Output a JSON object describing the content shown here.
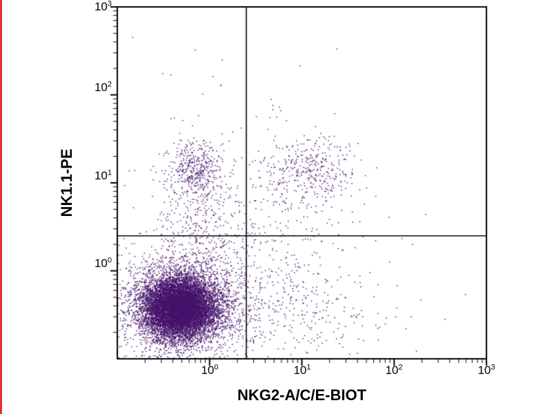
{
  "artifact": {
    "color": "#e03131"
  },
  "chart_data": {
    "type": "scatter",
    "title": "",
    "xlabel": "NKG2-A/C/E-BIOT",
    "ylabel": "NK1.1-PE",
    "x_scale": "log",
    "y_scale": "log",
    "xlim": [
      0.1,
      1000
    ],
    "ylim": [
      0.1,
      1000
    ],
    "x_log_range": [
      -1,
      3
    ],
    "y_log_range": [
      -1,
      3
    ],
    "x_ticks": [
      {
        "base": "10",
        "exp": "0"
      },
      {
        "base": "10",
        "exp": "1"
      },
      {
        "base": "10",
        "exp": "2"
      },
      {
        "base": "10",
        "exp": "3"
      }
    ],
    "y_ticks": [
      {
        "base": "10",
        "exp": "0"
      },
      {
        "base": "10",
        "exp": "1"
      },
      {
        "base": "10",
        "exp": "2"
      },
      {
        "base": "10",
        "exp": "3"
      }
    ],
    "gates": {
      "x": 2.5,
      "y": 2.5
    },
    "dot": {
      "color": "#45136b",
      "size": 1.6,
      "alpha": 0.85
    },
    "frame_color": "#000000",
    "seed": 42,
    "clusters": [
      {
        "name": "double-negative-core",
        "cx": -0.33,
        "cy": -0.42,
        "sx": 0.19,
        "sy": 0.17,
        "n": 9000
      },
      {
        "name": "double-negative-halo",
        "cx": -0.3,
        "cy": -0.4,
        "sx": 0.34,
        "sy": 0.3,
        "n": 2800
      },
      {
        "name": "nk11-positive-cluster",
        "cx": -0.16,
        "cy": 1.15,
        "sx": 0.15,
        "sy": 0.18,
        "n": 430
      },
      {
        "name": "nk11-positive-trail",
        "cx": -0.1,
        "cy": 0.55,
        "sx": 0.22,
        "sy": 0.32,
        "n": 240
      },
      {
        "name": "double-positive-cluster",
        "cx": 1.1,
        "cy": 1.12,
        "sx": 0.27,
        "sy": 0.2,
        "n": 380
      },
      {
        "name": "mid-sparse",
        "cx": 0.45,
        "cy": 0.2,
        "sx": 0.5,
        "sy": 0.5,
        "n": 320
      },
      {
        "name": "nkg2-positive-low",
        "cx": 0.8,
        "cy": -0.45,
        "sx": 0.55,
        "sy": 0.3,
        "n": 300
      },
      {
        "name": "background-sparse",
        "cx": 0.1,
        "cy": 0.3,
        "sx": 0.9,
        "sy": 0.9,
        "n": 200
      },
      {
        "name": "high-outliers",
        "cx": 0.0,
        "cy": 2.1,
        "sx": 0.5,
        "sy": 0.4,
        "n": 8
      }
    ],
    "outlier_points": [
      [
        -0.155,
        2.51
      ],
      [
        1.38,
        2.52
      ],
      [
        0.757,
        1.86
      ],
      [
        0.77,
        1.82
      ],
      [
        2.34,
        0.64
      ],
      [
        2.2,
        0.3
      ],
      [
        1.95,
        0.1
      ],
      [
        2.55,
        -0.55
      ]
    ]
  }
}
